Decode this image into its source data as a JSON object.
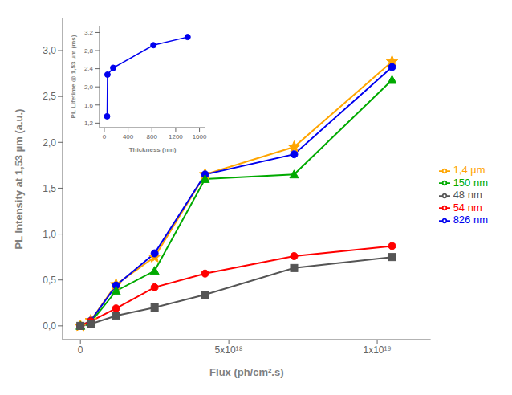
{
  "chart_data": [
    {
      "type": "line",
      "xlabel": "Flux (ph/cm².s)",
      "ylabel": "PL Intensity at 1,53 µm (a.u.)",
      "x": [
        0,
        3.5e+17,
        1.2e+18,
        2.5e+18,
        4.2e+18,
        7.2e+18,
        1.05e+19
      ],
      "xlim": [
        -6e+17,
        1.18e+19
      ],
      "xticks": [
        0,
        {
          "value": 5e+18,
          "label": "5x10¹⁸"
        },
        {
          "value": 1e+19,
          "label": "1x10¹⁹"
        }
      ],
      "ylim": [
        -0.15,
        3.35
      ],
      "yticks": [
        {
          "value": 0.0,
          "label": "0,0"
        },
        {
          "value": 0.5,
          "label": "0,5"
        },
        {
          "value": 1.0,
          "label": "1,0"
        },
        {
          "value": 1.5,
          "label": "1,5"
        },
        {
          "value": 2.0,
          "label": "2,0"
        },
        {
          "value": 2.5,
          "label": "2,5"
        },
        {
          "value": 3.0,
          "label": "3,0"
        }
      ],
      "legend": "right",
      "series": [
        {
          "name": "1,4 µm",
          "color": "#FFA500",
          "marker": "star",
          "values": [
            0.0,
            0.06,
            0.45,
            0.75,
            1.65,
            1.95,
            2.88
          ]
        },
        {
          "name": "826 nm",
          "color": "#0000EE",
          "marker": "circle",
          "values": [
            0.0,
            0.055,
            0.44,
            0.79,
            1.65,
            1.87,
            2.82
          ]
        },
        {
          "name": "150 nm",
          "color": "#00AA00",
          "marker": "triangle",
          "values": [
            0.0,
            0.04,
            0.38,
            0.6,
            1.6,
            1.65,
            2.68
          ]
        },
        {
          "name": "54 nm",
          "color": "#FF0000",
          "marker": "circle",
          "values": [
            0.0,
            0.05,
            0.19,
            0.42,
            0.57,
            0.76,
            0.87
          ]
        },
        {
          "name": "48 nm",
          "color": "#555555",
          "marker": "square",
          "values": [
            0.0,
            0.02,
            0.11,
            0.2,
            0.34,
            0.63,
            0.75
          ]
        }
      ]
    },
    {
      "type": "line",
      "xlabel": "Thickness (nm)",
      "ylabel": "PL Lifetime @ 1,53 µm (ms)",
      "x": [
        48,
        54,
        150,
        826,
        1400
      ],
      "values": [
        1.35,
        2.27,
        2.42,
        2.92,
        3.1
      ],
      "color": "#0000EE",
      "marker": "circle",
      "xlim": [
        -80,
        1700
      ],
      "xticks": [
        0,
        400,
        800,
        1200,
        1600
      ],
      "ylim": [
        1.1,
        3.35
      ],
      "yticks": [
        {
          "value": 1.2,
          "label": "1,2"
        },
        {
          "value": 1.6,
          "label": "1,6"
        },
        {
          "value": 2.0,
          "label": "2,0"
        },
        {
          "value": 2.4,
          "label": "2,4"
        },
        {
          "value": 2.8,
          "label": "2,8"
        },
        {
          "value": 3.2,
          "label": "3,2"
        }
      ]
    }
  ]
}
